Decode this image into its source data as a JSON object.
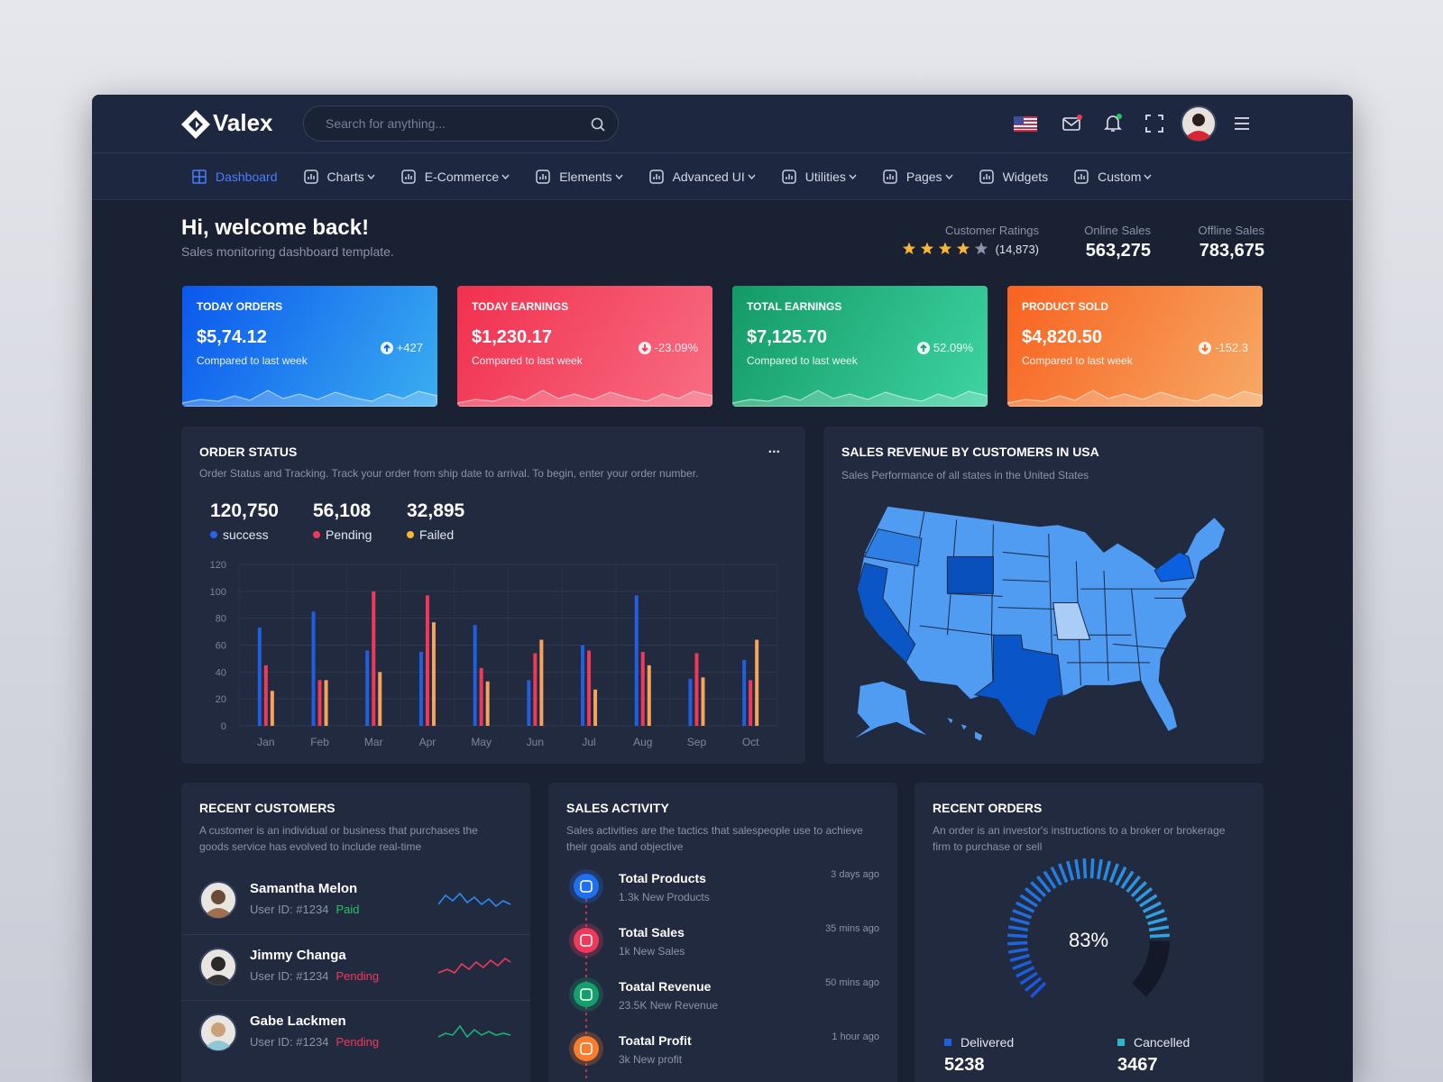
{
  "header": {
    "logo": "Valex",
    "search_placeholder": "Search for anything..."
  },
  "nav": [
    {
      "label": "Dashboard",
      "dropdown": false,
      "active": true
    },
    {
      "label": "Charts",
      "dropdown": true
    },
    {
      "label": "E-Commerce",
      "dropdown": true
    },
    {
      "label": "Elements",
      "dropdown": true
    },
    {
      "label": "Advanced UI",
      "dropdown": true
    },
    {
      "label": "Utilities",
      "dropdown": true
    },
    {
      "label": "Pages",
      "dropdown": true
    },
    {
      "label": "Widgets",
      "dropdown": false
    },
    {
      "label": "Custom",
      "dropdown": true
    }
  ],
  "welcome": {
    "title": "Hi, welcome back!",
    "subtitle": "Sales monitoring dashboard template."
  },
  "stats": {
    "ratings_label": "Customer Ratings",
    "stars": 4,
    "ratings_count": "(14,873)",
    "online_label": "Online Sales",
    "online_value": "563,275",
    "offline_label": "Offline Sales",
    "offline_value": "783,675"
  },
  "cards": [
    {
      "title": "TODAY ORDERS",
      "value": "$5,74.12",
      "caption": "Compared to last week",
      "change": "+427",
      "gradient": [
        "#0b57ee",
        "#3aaef0"
      ]
    },
    {
      "title": "TODAY EARNINGS",
      "value": "$1,230.17",
      "caption": "Compared to last week",
      "change": "-23.09%",
      "gradient": [
        "#f1304f",
        "#f86d82"
      ]
    },
    {
      "title": "TOTAL EARNINGS",
      "value": "$7,125.70",
      "caption": "Compared to last week",
      "change": "52.09%",
      "gradient": [
        "#139a66",
        "#3ed4a3"
      ]
    },
    {
      "title": "PRODUCT SOLD",
      "value": "$4,820.50",
      "caption": "Compared to last week",
      "change": "-152.3",
      "gradient": [
        "#f8621f",
        "#f6aa66"
      ]
    }
  ],
  "order_status": {
    "title": "ORDER STATUS",
    "menu": "...",
    "description": "Order Status and Tracking. Track your order from ship date to arrival. To begin, enter your order number.",
    "totals": [
      {
        "value": "120,750",
        "label": "success",
        "color": "#2563eb"
      },
      {
        "value": "56,108",
        "label": "Pending",
        "color": "#f0395a"
      },
      {
        "value": "32,895",
        "label": "Failed",
        "color": "#f7b731"
      }
    ],
    "chart": {
      "type": "bar",
      "categories": [
        "Jan",
        "Feb",
        "Mar",
        "Apr",
        "May",
        "Jun",
        "Jul",
        "Aug",
        "Sep",
        "Oct"
      ],
      "series": [
        {
          "name": "success",
          "color": "#1f5fe0",
          "values": [
            73,
            85,
            56,
            55,
            75,
            34,
            60,
            97,
            35,
            49
          ]
        },
        {
          "name": "Pending",
          "color": "#f0395a",
          "values": [
            45,
            34,
            100,
            97,
            43,
            54,
            56,
            55,
            54,
            34
          ]
        },
        {
          "name": "Failed",
          "color": "#f5a55a",
          "values": [
            26,
            34,
            40,
            77,
            33,
            64,
            27,
            45,
            36,
            64
          ]
        }
      ],
      "ylim": [
        0,
        120
      ],
      "yticks": [
        0,
        20,
        40,
        60,
        80,
        100,
        120
      ],
      "grid": true
    }
  },
  "sales_revenue": {
    "title": "SALES REVENUE BY CUSTOMERS IN USA",
    "description": "Sales Performance of all states in the United States"
  },
  "recent_customers": {
    "title": "RECENT CUSTOMERS",
    "description": "A customer is an individual or business that purchases the goods service has evolved to include real-time",
    "items": [
      {
        "name": "Samantha Melon",
        "user_id": "User ID: #1234",
        "status": "Paid",
        "status_color": "#22c55e",
        "spark_color": "#2b8cf5"
      },
      {
        "name": "Jimmy Changa",
        "user_id": "User ID: #1234",
        "status": "Pending",
        "status_color": "#f0395a",
        "spark_color": "#f0395a"
      },
      {
        "name": "Gabe Lackmen",
        "user_id": "User ID: #1234",
        "status": "Pending",
        "status_color": "#f0395a",
        "spark_color": "#1fb07a"
      }
    ]
  },
  "sales_activity": {
    "title": "SALES ACTIVITY",
    "description": "Sales activities are the tactics that salespeople use to achieve their goals and objective",
    "items": [
      {
        "title": "Total Products",
        "subtitle": "1.3k New Products",
        "time": "3 days ago",
        "color": "#1e6ff2"
      },
      {
        "title": "Total Sales",
        "subtitle": "1k New Sales",
        "time": "35 mins ago",
        "color": "#f0395a"
      },
      {
        "title": "Toatal Revenue",
        "subtitle": "23.5K New Revenue",
        "time": "50 mins ago",
        "color": "#14a06b"
      },
      {
        "title": "Toatal Profit",
        "subtitle": "3k New profit",
        "time": "1 hour ago",
        "color": "#f87d2c"
      }
    ]
  },
  "recent_orders": {
    "title": "RECENT ORDERS",
    "description": "An order is an investor's instructions to a broker or brokerage firm to purchase or sell",
    "percent": 83,
    "percent_label": "83%",
    "legend": [
      {
        "label": "Delivered",
        "value": "5238",
        "color": "#1f5fe0"
      },
      {
        "label": "Cancelled",
        "value": "3467",
        "color": "#2fb6c9"
      }
    ]
  }
}
